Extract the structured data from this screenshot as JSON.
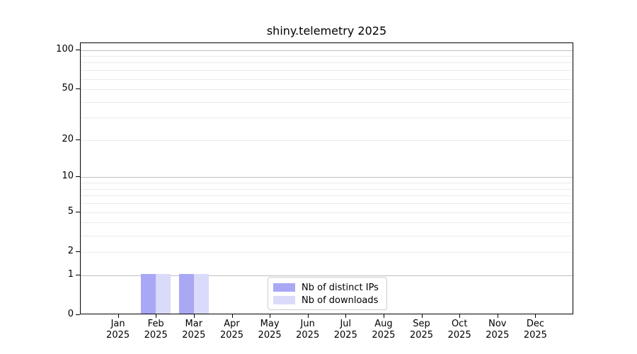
{
  "title": "shiny.telemetry 2025",
  "chart_data": {
    "type": "bar",
    "title": "shiny.telemetry 2025",
    "xlabel": "",
    "ylabel": "",
    "categories": [
      "Jan",
      "Feb",
      "Mar",
      "Apr",
      "May",
      "Jun",
      "Jul",
      "Aug",
      "Sep",
      "Oct",
      "Nov",
      "Dec"
    ],
    "category_year": "2025",
    "series": [
      {
        "name": "Nb of distinct IPs",
        "color": "#a8a8f5",
        "values": [
          0,
          1,
          1,
          0,
          0,
          0,
          0,
          0,
          0,
          0,
          0,
          0
        ]
      },
      {
        "name": "Nb of downloads",
        "color": "#dadafa",
        "values": [
          0,
          1,
          1,
          0,
          0,
          0,
          0,
          0,
          0,
          0,
          0,
          0
        ]
      }
    ],
    "yscale": "log1p",
    "ylim": [
      0,
      112
    ],
    "yticks_labeled": [
      100,
      50,
      20,
      10,
      5,
      2,
      1,
      0
    ],
    "gridlines_major": [
      100,
      10,
      1
    ],
    "gridlines_minor": [
      90,
      80,
      70,
      60,
      50,
      40,
      30,
      20,
      9,
      8,
      7,
      6,
      5,
      4,
      3,
      2
    ],
    "grid": true,
    "legend_position": "inside-bottom-center"
  },
  "colors": {
    "background": "#ffffff",
    "spine": "#000000",
    "major_grid": "#bfbfbf",
    "minor_grid": "#eaeaea",
    "legend_border": "#cccccc",
    "text": "#000000",
    "bar_distinct_ips": "#a8a8f5",
    "bar_downloads": "#dadafa"
  }
}
